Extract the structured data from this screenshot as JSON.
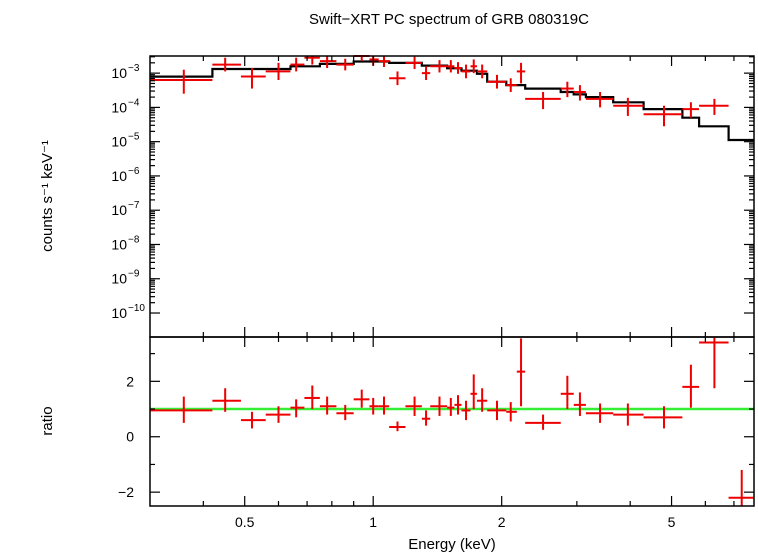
{
  "chart_data": [
    {
      "type": "scatter",
      "title": "Swift−XRT PC spectrum of GRB 080319C",
      "ylabel": "counts s⁻¹ keV⁻¹",
      "xscale": "log",
      "yscale": "log",
      "xlim": [
        0.3,
        7.8
      ],
      "ylim_exponent": [
        -10.7,
        -2.5
      ],
      "y_tick_exponents": [
        -10,
        -9,
        -8,
        -7,
        -6,
        -5,
        -4,
        -3
      ],
      "y_tick_labels": [
        "10",
        "10",
        "10",
        "10",
        "10",
        "10",
        "10",
        "10"
      ],
      "y_tick_superscripts": [
        "−10",
        "−9",
        "−8",
        "−7",
        "−6",
        "−5",
        "−4",
        "−3"
      ],
      "grid": false,
      "legend": "none",
      "colors": {
        "data": "#ee0000",
        "model": "#000000"
      },
      "data": [
        {
          "x": 0.36,
          "xlo": 0.3,
          "xhi": 0.42,
          "y_exp": -3.2,
          "ylo_exp": -3.6,
          "yhi_exp": -2.9
        },
        {
          "x": 0.45,
          "xlo": 0.42,
          "xhi": 0.49,
          "y_exp": -2.75,
          "ylo_exp": -2.95,
          "yhi_exp": -2.55
        },
        {
          "x": 0.52,
          "xlo": 0.49,
          "xhi": 0.56,
          "y_exp": -3.1,
          "ylo_exp": -3.45,
          "yhi_exp": -2.85
        },
        {
          "x": 0.6,
          "xlo": 0.56,
          "xhi": 0.64,
          "y_exp": -2.95,
          "ylo_exp": -3.2,
          "yhi_exp": -2.7
        },
        {
          "x": 0.66,
          "xlo": 0.64,
          "xhi": 0.69,
          "y_exp": -2.75,
          "ylo_exp": -2.95,
          "yhi_exp": -2.55
        },
        {
          "x": 0.72,
          "xlo": 0.69,
          "xhi": 0.75,
          "y_exp": -2.55,
          "ylo_exp": -2.75,
          "yhi_exp": -2.35
        },
        {
          "x": 0.78,
          "xlo": 0.75,
          "xhi": 0.82,
          "y_exp": -2.65,
          "ylo_exp": -2.85,
          "yhi_exp": -2.45
        },
        {
          "x": 0.86,
          "xlo": 0.82,
          "xhi": 0.9,
          "y_exp": -2.75,
          "ylo_exp": -2.92,
          "yhi_exp": -2.58
        },
        {
          "x": 0.94,
          "xlo": 0.9,
          "xhi": 0.98,
          "y_exp": -2.5,
          "ylo_exp": -2.65,
          "yhi_exp": -2.35
        },
        {
          "x": 1.0,
          "xlo": 0.98,
          "xhi": 1.03,
          "y_exp": -2.6,
          "ylo_exp": -2.78,
          "yhi_exp": -2.42
        },
        {
          "x": 1.06,
          "xlo": 1.03,
          "xhi": 1.09,
          "y_exp": -2.65,
          "ylo_exp": -2.82,
          "yhi_exp": -2.48
        },
        {
          "x": 1.14,
          "xlo": 1.09,
          "xhi": 1.19,
          "y_exp": -3.15,
          "ylo_exp": -3.35,
          "yhi_exp": -2.95
        },
        {
          "x": 1.25,
          "xlo": 1.19,
          "xhi": 1.3,
          "y_exp": -2.7,
          "ylo_exp": -2.88,
          "yhi_exp": -2.52
        },
        {
          "x": 1.33,
          "xlo": 1.3,
          "xhi": 1.36,
          "y_exp": -3.0,
          "ylo_exp": -3.2,
          "yhi_exp": -2.8
        },
        {
          "x": 1.43,
          "xlo": 1.36,
          "xhi": 1.49,
          "y_exp": -2.8,
          "ylo_exp": -2.98,
          "yhi_exp": -2.62
        },
        {
          "x": 1.52,
          "xlo": 1.49,
          "xhi": 1.55,
          "y_exp": -2.8,
          "ylo_exp": -2.98,
          "yhi_exp": -2.62
        },
        {
          "x": 1.58,
          "xlo": 1.55,
          "xhi": 1.61,
          "y_exp": -2.85,
          "ylo_exp": -3.02,
          "yhi_exp": -2.68
        },
        {
          "x": 1.65,
          "xlo": 1.61,
          "xhi": 1.69,
          "y_exp": -2.95,
          "ylo_exp": -3.15,
          "yhi_exp": -2.75
        },
        {
          "x": 1.72,
          "xlo": 1.69,
          "xhi": 1.75,
          "y_exp": -2.8,
          "ylo_exp": -3.0,
          "yhi_exp": -2.6
        },
        {
          "x": 1.8,
          "xlo": 1.75,
          "xhi": 1.85,
          "y_exp": -2.95,
          "ylo_exp": -3.15,
          "yhi_exp": -2.75
        },
        {
          "x": 1.95,
          "xlo": 1.85,
          "xhi": 2.05,
          "y_exp": -3.25,
          "ylo_exp": -3.45,
          "yhi_exp": -3.05
        },
        {
          "x": 2.1,
          "xlo": 2.05,
          "xhi": 2.17,
          "y_exp": -3.35,
          "ylo_exp": -3.55,
          "yhi_exp": -3.15
        },
        {
          "x": 2.22,
          "xlo": 2.17,
          "xhi": 2.27,
          "y_exp": -2.95,
          "ylo_exp": -3.3,
          "yhi_exp": -2.7
        },
        {
          "x": 2.5,
          "xlo": 2.27,
          "xhi": 2.75,
          "y_exp": -3.75,
          "ylo_exp": -4.05,
          "yhi_exp": -3.55
        },
        {
          "x": 2.85,
          "xlo": 2.75,
          "xhi": 2.95,
          "y_exp": -3.45,
          "ylo_exp": -3.7,
          "yhi_exp": -3.25
        },
        {
          "x": 3.05,
          "xlo": 2.95,
          "xhi": 3.15,
          "y_exp": -3.55,
          "ylo_exp": -3.8,
          "yhi_exp": -3.35
        },
        {
          "x": 3.4,
          "xlo": 3.15,
          "xhi": 3.65,
          "y_exp": -3.75,
          "ylo_exp": -4.0,
          "yhi_exp": -3.55
        },
        {
          "x": 3.95,
          "xlo": 3.65,
          "xhi": 4.3,
          "y_exp": -3.95,
          "ylo_exp": -4.25,
          "yhi_exp": -3.72
        },
        {
          "x": 4.8,
          "xlo": 4.3,
          "xhi": 5.3,
          "y_exp": -4.2,
          "ylo_exp": -4.55,
          "yhi_exp": -3.95
        },
        {
          "x": 5.55,
          "xlo": 5.3,
          "xhi": 5.8,
          "y_exp": -4.05,
          "ylo_exp": -4.3,
          "yhi_exp": -3.85
        },
        {
          "x": 6.3,
          "xlo": 5.8,
          "xhi": 6.8,
          "y_exp": -3.95,
          "ylo_exp": -4.22,
          "yhi_exp": -3.75
        }
      ],
      "model": [
        {
          "x0": 0.3,
          "x1": 0.42,
          "y_exp": -3.1
        },
        {
          "x0": 0.42,
          "x1": 0.64,
          "y_exp": -2.88
        },
        {
          "x0": 0.64,
          "x1": 0.75,
          "y_exp": -2.8
        },
        {
          "x0": 0.75,
          "x1": 0.9,
          "y_exp": -2.73
        },
        {
          "x0": 0.9,
          "x1": 1.09,
          "y_exp": -2.66
        },
        {
          "x0": 1.09,
          "x1": 1.3,
          "y_exp": -2.7
        },
        {
          "x0": 1.3,
          "x1": 1.49,
          "y_exp": -2.78
        },
        {
          "x0": 1.49,
          "x1": 1.61,
          "y_exp": -2.86
        },
        {
          "x0": 1.61,
          "x1": 1.75,
          "y_exp": -2.93
        },
        {
          "x0": 1.75,
          "x1": 1.85,
          "y_exp": -3.02
        },
        {
          "x0": 1.85,
          "x1": 2.05,
          "y_exp": -3.25
        },
        {
          "x0": 2.05,
          "x1": 2.27,
          "y_exp": -3.35
        },
        {
          "x0": 2.27,
          "x1": 2.75,
          "y_exp": -3.45
        },
        {
          "x0": 2.75,
          "x1": 2.95,
          "y_exp": -3.55
        },
        {
          "x0": 2.95,
          "x1": 3.15,
          "y_exp": -3.62
        },
        {
          "x0": 3.15,
          "x1": 3.65,
          "y_exp": -3.7
        },
        {
          "x0": 3.65,
          "x1": 4.3,
          "y_exp": -3.85
        },
        {
          "x0": 4.3,
          "x1": 5.3,
          "y_exp": -4.05
        },
        {
          "x0": 5.3,
          "x1": 5.8,
          "y_exp": -4.3
        },
        {
          "x0": 5.8,
          "x1": 6.8,
          "y_exp": -4.55
        },
        {
          "x0": 6.8,
          "x1": 7.8,
          "y_exp": -4.95
        }
      ]
    },
    {
      "type": "scatter",
      "xlabel": "Energy (keV)",
      "ylabel": "ratio",
      "xscale": "log",
      "xlim": [
        0.3,
        7.8
      ],
      "ylim": [
        -2.5,
        3.6
      ],
      "x_ticks": [
        0.5,
        1,
        2,
        5
      ],
      "x_tick_labels": [
        "0.5",
        "1",
        "2",
        "5"
      ],
      "y_ticks": [
        -2,
        0,
        2
      ],
      "y_tick_labels": [
        "−2",
        "0",
        "2"
      ],
      "reference_line": 1,
      "grid": false,
      "legend": "none",
      "colors": {
        "data": "#ee0000",
        "reference": "#33ee33"
      },
      "data": [
        {
          "x": 0.36,
          "xlo": 0.3,
          "xhi": 0.42,
          "y": 0.95,
          "ylo": 0.5,
          "yhi": 1.45
        },
        {
          "x": 0.45,
          "xlo": 0.42,
          "xhi": 0.49,
          "y": 1.3,
          "ylo": 0.9,
          "yhi": 1.75
        },
        {
          "x": 0.52,
          "xlo": 0.49,
          "xhi": 0.56,
          "y": 0.6,
          "ylo": 0.3,
          "yhi": 0.9
        },
        {
          "x": 0.6,
          "xlo": 0.56,
          "xhi": 0.64,
          "y": 0.8,
          "ylo": 0.5,
          "yhi": 1.1
        },
        {
          "x": 0.66,
          "xlo": 0.64,
          "xhi": 0.69,
          "y": 1.05,
          "ylo": 0.7,
          "yhi": 1.35
        },
        {
          "x": 0.72,
          "xlo": 0.69,
          "xhi": 0.75,
          "y": 1.4,
          "ylo": 1.0,
          "yhi": 1.85
        },
        {
          "x": 0.78,
          "xlo": 0.75,
          "xhi": 0.82,
          "y": 1.1,
          "ylo": 0.8,
          "yhi": 1.45
        },
        {
          "x": 0.86,
          "xlo": 0.82,
          "xhi": 0.9,
          "y": 0.85,
          "ylo": 0.6,
          "yhi": 1.15
        },
        {
          "x": 0.94,
          "xlo": 0.9,
          "xhi": 0.98,
          "y": 1.35,
          "ylo": 1.05,
          "yhi": 1.7
        },
        {
          "x": 1.0,
          "xlo": 0.98,
          "xhi": 1.03,
          "y": 1.1,
          "ylo": 0.8,
          "yhi": 1.4
        },
        {
          "x": 1.06,
          "xlo": 1.03,
          "xhi": 1.09,
          "y": 1.1,
          "ylo": 0.8,
          "yhi": 1.45
        },
        {
          "x": 1.14,
          "xlo": 1.09,
          "xhi": 1.19,
          "y": 0.35,
          "ylo": 0.2,
          "yhi": 0.55
        },
        {
          "x": 1.25,
          "xlo": 1.19,
          "xhi": 1.3,
          "y": 1.1,
          "ylo": 0.75,
          "yhi": 1.45
        },
        {
          "x": 1.33,
          "xlo": 1.3,
          "xhi": 1.36,
          "y": 0.65,
          "ylo": 0.4,
          "yhi": 0.95
        },
        {
          "x": 1.43,
          "xlo": 1.36,
          "xhi": 1.49,
          "y": 1.1,
          "ylo": 0.75,
          "yhi": 1.45
        },
        {
          "x": 1.52,
          "xlo": 1.49,
          "xhi": 1.55,
          "y": 1.05,
          "ylo": 0.75,
          "yhi": 1.4
        },
        {
          "x": 1.58,
          "xlo": 1.55,
          "xhi": 1.61,
          "y": 1.15,
          "ylo": 0.8,
          "yhi": 1.5
        },
        {
          "x": 1.65,
          "xlo": 1.61,
          "xhi": 1.69,
          "y": 0.95,
          "ylo": 0.6,
          "yhi": 1.3
        },
        {
          "x": 1.72,
          "xlo": 1.69,
          "xhi": 1.75,
          "y": 1.55,
          "ylo": 1.0,
          "yhi": 2.25
        },
        {
          "x": 1.8,
          "xlo": 1.75,
          "xhi": 1.85,
          "y": 1.3,
          "ylo": 0.9,
          "yhi": 1.75
        },
        {
          "x": 1.95,
          "xlo": 1.85,
          "xhi": 2.05,
          "y": 0.95,
          "ylo": 0.6,
          "yhi": 1.3
        },
        {
          "x": 2.1,
          "xlo": 2.05,
          "xhi": 2.17,
          "y": 0.9,
          "ylo": 0.55,
          "yhi": 1.25
        },
        {
          "x": 2.22,
          "xlo": 2.17,
          "xhi": 2.27,
          "y": 2.35,
          "ylo": 1.1,
          "yhi": 3.55
        },
        {
          "x": 2.5,
          "xlo": 2.27,
          "xhi": 2.75,
          "y": 0.5,
          "ylo": 0.25,
          "yhi": 0.8
        },
        {
          "x": 2.85,
          "xlo": 2.75,
          "xhi": 2.95,
          "y": 1.55,
          "ylo": 1.0,
          "yhi": 2.2
        },
        {
          "x": 3.05,
          "xlo": 2.95,
          "xhi": 3.15,
          "y": 1.15,
          "ylo": 0.75,
          "yhi": 1.6
        },
        {
          "x": 3.4,
          "xlo": 3.15,
          "xhi": 3.65,
          "y": 0.85,
          "ylo": 0.5,
          "yhi": 1.2
        },
        {
          "x": 3.95,
          "xlo": 3.65,
          "xhi": 4.3,
          "y": 0.8,
          "ylo": 0.4,
          "yhi": 1.2
        },
        {
          "x": 4.8,
          "xlo": 4.3,
          "xhi": 5.3,
          "y": 0.7,
          "ylo": 0.3,
          "yhi": 1.1
        },
        {
          "x": 5.55,
          "xlo": 5.3,
          "xhi": 5.8,
          "y": 1.8,
          "ylo": 1.05,
          "yhi": 2.6
        },
        {
          "x": 6.3,
          "xlo": 5.8,
          "xhi": 6.8,
          "y": 3.4,
          "ylo": 1.75,
          "yhi": 3.6
        },
        {
          "x": 7.3,
          "xlo": 6.8,
          "xhi": 7.8,
          "y": -2.2,
          "ylo": -2.5,
          "yhi": -1.2
        }
      ]
    }
  ]
}
